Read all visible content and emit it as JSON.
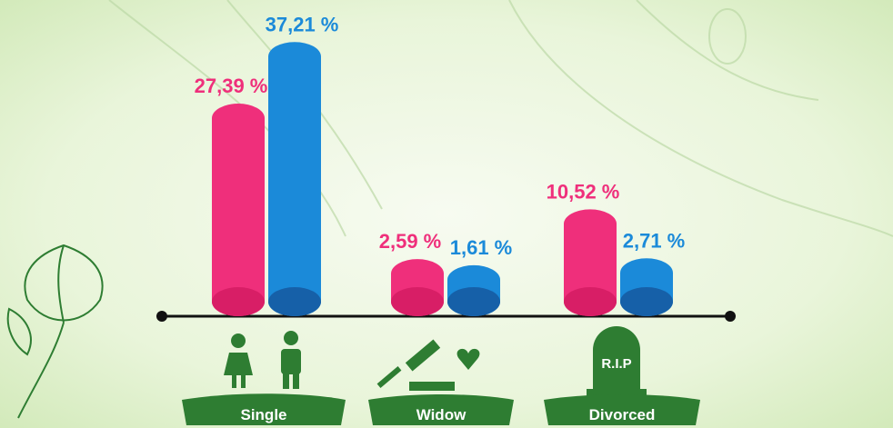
{
  "chart_data": {
    "type": "bar",
    "categories": [
      "Single",
      "Widow",
      "Divorced"
    ],
    "series": [
      {
        "color": "#ef2f7b",
        "values": [
          27.39,
          2.59,
          10.52
        ],
        "value_labels": [
          "27,39 %",
          "2,59 %",
          "10,52 %"
        ]
      },
      {
        "color": "#1b8ad9",
        "values": [
          37.21,
          1.61,
          2.71
        ],
        "value_labels": [
          "37,21 %",
          "1,61 %",
          "2,71 %"
        ]
      }
    ]
  }
}
